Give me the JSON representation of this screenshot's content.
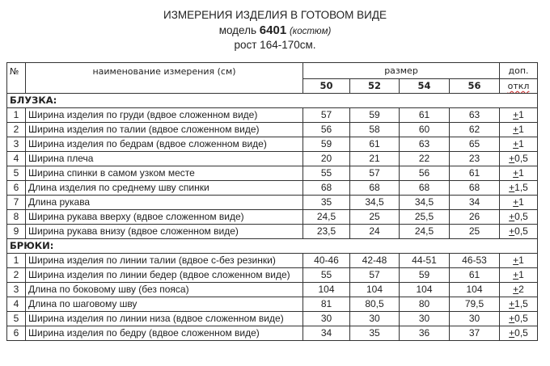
{
  "header": {
    "title": "ИЗМЕРЕНИЯ ИЗДЕЛИЯ В ГОТОВОМ ВИДЕ",
    "model_prefix": "модель",
    "model_number": "6401",
    "model_note": "(костюм)",
    "height": "рост 164-170см."
  },
  "table": {
    "col_no": "№",
    "col_name": "наименование измерения (см)",
    "col_size": "размер",
    "col_tol_1": "доп.",
    "col_tol_2": "откл",
    "sizes": [
      "50",
      "52",
      "54",
      "56"
    ],
    "sections": [
      {
        "title": "БЛУЗКА:",
        "rows": [
          {
            "no": "1",
            "name": "Ширина изделия по груди (вдвое сложенном виде)",
            "values": [
              "57",
              "59",
              "61",
              "63"
            ],
            "tol": "+1"
          },
          {
            "no": "2",
            "name": "Ширина изделия по талии (вдвое сложенном виде)",
            "values": [
              "56",
              "58",
              "60",
              "62"
            ],
            "tol": "+1"
          },
          {
            "no": "3",
            "name": "Ширина изделия по бедрам (вдвое сложенном виде)",
            "values": [
              "59",
              "61",
              "63",
              "65"
            ],
            "tol": "+1"
          },
          {
            "no": "4",
            "name": "Ширина плеча",
            "values": [
              "20",
              "21",
              "22",
              "23"
            ],
            "tol": "+0,5"
          },
          {
            "no": "5",
            "name": "Ширина спинки в самом узком месте",
            "values": [
              "55",
              "57",
              "56",
              "61"
            ],
            "tol": "+1"
          },
          {
            "no": "6",
            "name": "Длина изделия по среднему шву спинки",
            "values": [
              "68",
              "68",
              "68",
              "68"
            ],
            "tol": "+1,5"
          },
          {
            "no": "7",
            "name": "Длина рукава",
            "values": [
              "35",
              "34,5",
              "34,5",
              "34"
            ],
            "tol": "+1"
          },
          {
            "no": "8",
            "name": "Ширина рукава вверху (вдвое сложенном виде)",
            "values": [
              "24,5",
              "25",
              "25,5",
              "26"
            ],
            "tol": "+0,5"
          },
          {
            "no": "9",
            "name": "Ширина рукава внизу (вдвое сложенном виде)",
            "values": [
              "23,5",
              "24",
              "24,5",
              "25"
            ],
            "tol": "+0,5"
          }
        ]
      },
      {
        "title": "БРЮКИ:",
        "rows": [
          {
            "no": "1",
            "name": "Ширина изделия по линии талии (вдвое с-без резинки)",
            "values": [
              "40-46",
              "42-48",
              "44-51",
              "46-53"
            ],
            "tol": "+1"
          },
          {
            "no": "2",
            "name": "Ширина изделия по линии бедер (вдвое сложенном виде)",
            "values": [
              "55",
              "57",
              "59",
              "61"
            ],
            "tol": "+1"
          },
          {
            "no": "3",
            "name": "Длина по боковому шву (без пояса)",
            "values": [
              "104",
              "104",
              "104",
              "104"
            ],
            "tol": "+2"
          },
          {
            "no": "4",
            "name": "Длина по шаговому шву",
            "values": [
              "81",
              "80,5",
              "80",
              "79,5"
            ],
            "tol": "+1,5"
          },
          {
            "no": "5",
            "name": "Ширина изделия по линии низа (вдвое сложенном виде)",
            "values": [
              "30",
              "30",
              "30",
              "30"
            ],
            "tol": "+0,5"
          },
          {
            "no": "6",
            "name": "Ширина изделия по бедру (вдвое сложенном виде)",
            "values": [
              "34",
              "35",
              "36",
              "37"
            ],
            "tol": "+0,5"
          }
        ]
      }
    ]
  }
}
